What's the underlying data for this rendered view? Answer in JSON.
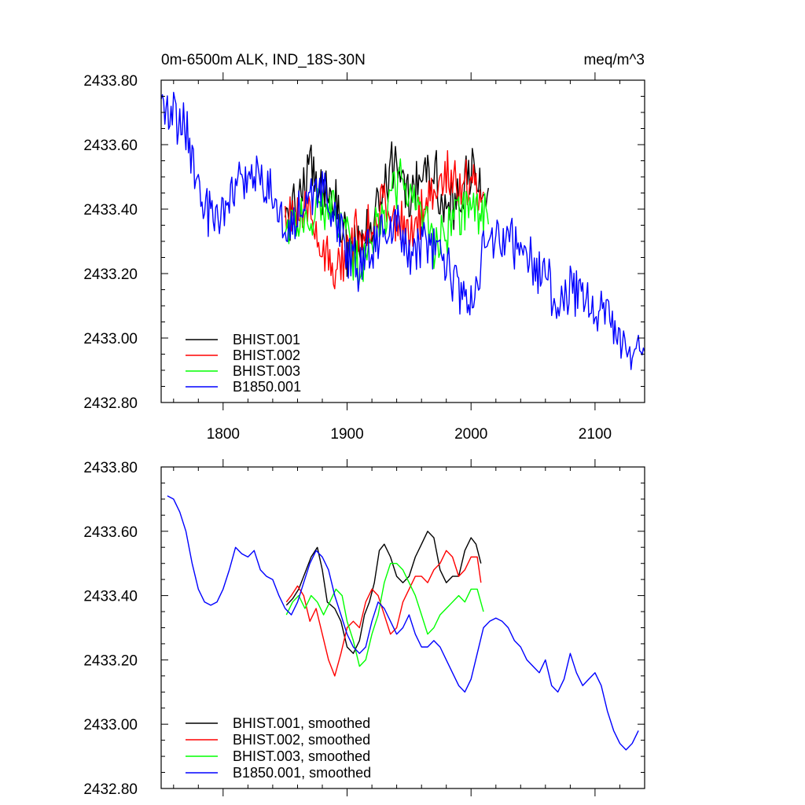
{
  "chart_data": [
    {
      "type": "line",
      "title": "0m-6500m ALK, IND_18S-30N",
      "units": "meq/m^3",
      "xlabel": "",
      "ylabel": "",
      "xlim": [
        1750,
        2140
      ],
      "ylim": [
        2432.8,
        2433.8
      ],
      "x_ticks": [
        1800,
        1900,
        2000,
        2100
      ],
      "x_tick_labels": [
        "1800",
        "1900",
        "2000",
        "2100"
      ],
      "y_ticks": [
        2432.8,
        2433.0,
        2433.2,
        2433.4,
        2433.6,
        2433.8
      ],
      "y_tick_labels": [
        "2432.80",
        "2433.00",
        "2433.20",
        "2433.40",
        "2433.60",
        "2433.80"
      ],
      "legend_position": "bottom-left",
      "grid": false,
      "series": [
        {
          "name": "BHIST.001",
          "color": "#000000",
          "noise": 0.08,
          "x": [
            1850,
            1860,
            1870,
            1880,
            1890,
            1900,
            1910,
            1920,
            1930,
            1940,
            1950,
            1960,
            1970,
            1980,
            1990,
            2000,
            2010,
            2014
          ],
          "y": [
            2433.36,
            2433.44,
            2433.52,
            2433.46,
            2433.44,
            2433.28,
            2433.26,
            2433.36,
            2433.5,
            2433.52,
            2433.46,
            2433.52,
            2433.54,
            2433.38,
            2433.42,
            2433.52,
            2433.46,
            2433.46
          ]
        },
        {
          "name": "BHIST.002",
          "color": "#ff0000",
          "noise": 0.07,
          "x": [
            1850,
            1860,
            1870,
            1880,
            1890,
            1900,
            1910,
            1920,
            1930,
            1940,
            1950,
            1960,
            1970,
            1980,
            1990,
            2000,
            2010
          ],
          "y": [
            2433.38,
            2433.42,
            2433.36,
            2433.3,
            2433.18,
            2433.26,
            2433.34,
            2433.36,
            2433.42,
            2433.36,
            2433.3,
            2433.4,
            2433.46,
            2433.52,
            2433.46,
            2433.5,
            2433.44
          ]
        },
        {
          "name": "BHIST.003",
          "color": "#00ff00",
          "noise": 0.07,
          "x": [
            1850,
            1860,
            1870,
            1880,
            1890,
            1900,
            1910,
            1920,
            1930,
            1940,
            1950,
            1960,
            1970,
            1980,
            1990,
            2000,
            2010,
            2014
          ],
          "y": [
            2433.32,
            2433.36,
            2433.4,
            2433.38,
            2433.42,
            2433.32,
            2433.2,
            2433.3,
            2433.38,
            2433.48,
            2433.46,
            2433.38,
            2433.3,
            2433.32,
            2433.38,
            2433.4,
            2433.38,
            2433.34
          ]
        },
        {
          "name": "B1850.001",
          "color": "#0000ff",
          "noise": 0.07,
          "x": [
            1750,
            1760,
            1770,
            1780,
            1790,
            1800,
            1810,
            1820,
            1830,
            1840,
            1850,
            1860,
            1870,
            1880,
            1890,
            1900,
            1910,
            1920,
            1930,
            1940,
            1950,
            1960,
            1970,
            1980,
            1990,
            2000,
            2010,
            2020,
            2030,
            2040,
            2050,
            2060,
            2070,
            2080,
            2090,
            2100,
            2110,
            2120,
            2130,
            2140
          ],
          "y": [
            2433.72,
            2433.7,
            2433.64,
            2433.46,
            2433.38,
            2433.38,
            2433.48,
            2433.52,
            2433.5,
            2433.44,
            2433.34,
            2433.38,
            2433.44,
            2433.48,
            2433.4,
            2433.26,
            2433.22,
            2433.28,
            2433.32,
            2433.36,
            2433.26,
            2433.3,
            2433.28,
            2433.24,
            2433.14,
            2433.1,
            2433.26,
            2433.32,
            2433.32,
            2433.28,
            2433.22,
            2433.18,
            2433.12,
            2433.16,
            2433.14,
            2433.1,
            2433.08,
            2432.98,
            2432.92,
            2432.98
          ]
        }
      ]
    },
    {
      "type": "line",
      "title": "",
      "xlabel": "",
      "ylabel": "",
      "xlim": [
        1750,
        2140
      ],
      "ylim": [
        2432.8,
        2433.8
      ],
      "x_ticks": [
        1800,
        1900,
        2000,
        2100
      ],
      "y_ticks": [
        2432.8,
        2433.0,
        2433.2,
        2433.4,
        2433.6,
        2433.8
      ],
      "y_tick_labels": [
        "2432.80",
        "2433.00",
        "2433.20",
        "2433.40",
        "2433.60",
        "2433.80"
      ],
      "legend_position": "bottom-left",
      "grid": false,
      "series": [
        {
          "name": "BHIST.001, smoothed",
          "color": "#000000",
          "noise": 0,
          "x": [
            1851,
            1856,
            1861,
            1866,
            1871,
            1876,
            1880,
            1884,
            1890,
            1895,
            1900,
            1905,
            1910,
            1914,
            1918,
            1922,
            1926,
            1930,
            1935,
            1940,
            1945,
            1950,
            1955,
            1960,
            1965,
            1970,
            1975,
            1980,
            1985,
            1990,
            1995,
            2000,
            2004,
            2008
          ],
          "y": [
            2433.37,
            2433.39,
            2433.42,
            2433.47,
            2433.52,
            2433.55,
            2433.48,
            2433.38,
            2433.36,
            2433.32,
            2433.24,
            2433.22,
            2433.26,
            2433.34,
            2433.38,
            2433.44,
            2433.54,
            2433.56,
            2433.52,
            2433.46,
            2433.44,
            2433.46,
            2433.52,
            2433.56,
            2433.6,
            2433.58,
            2433.48,
            2433.44,
            2433.46,
            2433.46,
            2433.54,
            2433.58,
            2433.56,
            2433.5
          ]
        },
        {
          "name": "BHIST.002, smoothed",
          "color": "#ff0000",
          "noise": 0,
          "x": [
            1851,
            1855,
            1860,
            1865,
            1870,
            1875,
            1880,
            1885,
            1890,
            1895,
            1900,
            1905,
            1910,
            1915,
            1920,
            1925,
            1930,
            1935,
            1940,
            1945,
            1950,
            1955,
            1960,
            1965,
            1970,
            1975,
            1980,
            1985,
            1990,
            1995,
            2000,
            2005,
            2008
          ],
          "y": [
            2433.38,
            2433.4,
            2433.43,
            2433.4,
            2433.32,
            2433.36,
            2433.28,
            2433.2,
            2433.15,
            2433.22,
            2433.3,
            2433.32,
            2433.3,
            2433.38,
            2433.42,
            2433.4,
            2433.34,
            2433.28,
            2433.3,
            2433.38,
            2433.42,
            2433.46,
            2433.46,
            2433.44,
            2433.48,
            2433.5,
            2433.54,
            2433.52,
            2433.46,
            2433.48,
            2433.52,
            2433.52,
            2433.44
          ]
        },
        {
          "name": "BHIST.003, smoothed",
          "color": "#00ff00",
          "noise": 0,
          "x": [
            1851,
            1856,
            1861,
            1866,
            1871,
            1876,
            1881,
            1886,
            1891,
            1896,
            1900,
            1905,
            1910,
            1915,
            1920,
            1925,
            1930,
            1935,
            1940,
            1945,
            1950,
            1955,
            1960,
            1965,
            1970,
            1975,
            1980,
            1985,
            1990,
            1995,
            2000,
            2005,
            2010
          ],
          "y": [
            2433.34,
            2433.38,
            2433.4,
            2433.36,
            2433.4,
            2433.38,
            2433.34,
            2433.38,
            2433.42,
            2433.4,
            2433.32,
            2433.26,
            2433.18,
            2433.2,
            2433.28,
            2433.34,
            2433.44,
            2433.5,
            2433.5,
            2433.48,
            2433.44,
            2433.4,
            2433.34,
            2433.28,
            2433.3,
            2433.34,
            2433.36,
            2433.38,
            2433.4,
            2433.38,
            2433.42,
            2433.42,
            2433.35
          ]
        },
        {
          "name": "B1850.001, smoothed",
          "color": "#0000ff",
          "noise": 0,
          "x": [
            1755,
            1760,
            1765,
            1770,
            1775,
            1780,
            1785,
            1790,
            1795,
            1800,
            1805,
            1810,
            1815,
            1820,
            1825,
            1830,
            1835,
            1840,
            1845,
            1850,
            1855,
            1860,
            1865,
            1870,
            1875,
            1880,
            1885,
            1890,
            1895,
            1900,
            1905,
            1910,
            1915,
            1920,
            1925,
            1930,
            1935,
            1940,
            1945,
            1950,
            1955,
            1960,
            1965,
            1970,
            1975,
            1980,
            1985,
            1990,
            1995,
            2000,
            2005,
            2010,
            2015,
            2020,
            2025,
            2030,
            2035,
            2040,
            2045,
            2050,
            2055,
            2060,
            2065,
            2070,
            2075,
            2080,
            2085,
            2090,
            2095,
            2100,
            2105,
            2110,
            2115,
            2120,
            2125,
            2130,
            2135
          ],
          "y": [
            2433.71,
            2433.7,
            2433.66,
            2433.6,
            2433.5,
            2433.42,
            2433.38,
            2433.37,
            2433.38,
            2433.42,
            2433.48,
            2433.55,
            2433.53,
            2433.52,
            2433.54,
            2433.48,
            2433.46,
            2433.45,
            2433.4,
            2433.36,
            2433.34,
            2433.38,
            2433.44,
            2433.5,
            2433.54,
            2433.52,
            2433.48,
            2433.4,
            2433.34,
            2433.28,
            2433.24,
            2433.22,
            2433.24,
            2433.32,
            2433.38,
            2433.36,
            2433.32,
            2433.28,
            2433.3,
            2433.34,
            2433.28,
            2433.24,
            2433.24,
            2433.26,
            2433.24,
            2433.2,
            2433.16,
            2433.12,
            2433.1,
            2433.14,
            2433.22,
            2433.3,
            2433.32,
            2433.33,
            2433.32,
            2433.3,
            2433.26,
            2433.24,
            2433.2,
            2433.18,
            2433.16,
            2433.2,
            2433.12,
            2433.1,
            2433.14,
            2433.22,
            2433.16,
            2433.12,
            2433.14,
            2433.16,
            2433.12,
            2433.04,
            2432.98,
            2432.94,
            2432.92,
            2432.94,
            2432.98
          ]
        }
      ]
    }
  ]
}
